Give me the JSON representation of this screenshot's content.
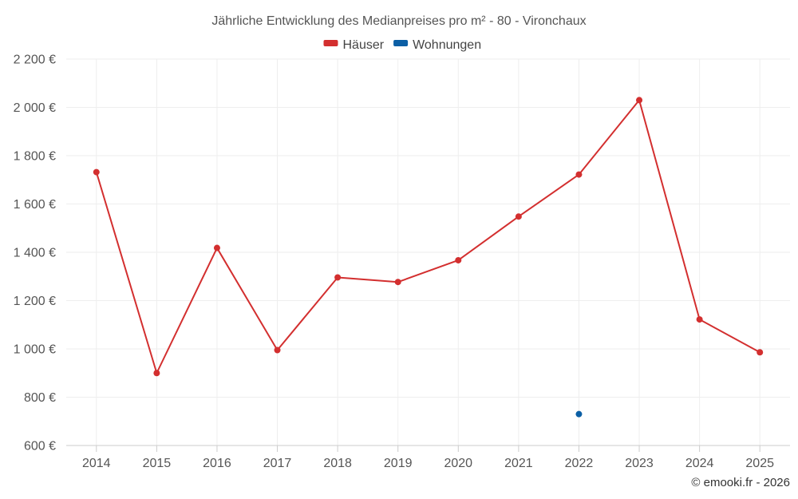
{
  "chart_data": {
    "type": "line",
    "title": "Jährliche Entwicklung des Medianpreises pro m² - 80 - Vironchaux",
    "categories": [
      "2014",
      "2015",
      "2016",
      "2017",
      "2018",
      "2019",
      "2020",
      "2021",
      "2022",
      "2023",
      "2024",
      "2025"
    ],
    "series": [
      {
        "name": "Häuser",
        "color": "#d32f2f",
        "values": [
          1732,
          900,
          1418,
          995,
          1296,
          1277,
          1367,
          1548,
          1722,
          2030,
          1122,
          986
        ]
      },
      {
        "name": "Wohnungen",
        "color": "#0b5fa5",
        "values": [
          null,
          null,
          null,
          null,
          null,
          null,
          null,
          null,
          730,
          null,
          null,
          null
        ]
      }
    ],
    "ylim": [
      600,
      2200
    ],
    "yticks": [
      600,
      800,
      1000,
      1200,
      1400,
      1600,
      1800,
      2000,
      2200
    ],
    "ytick_labels": [
      "600 €",
      "800 €",
      "1 000 €",
      "1 200 €",
      "1 400 €",
      "1 600 €",
      "1 800 €",
      "2 000 €",
      "2 200 €"
    ],
    "xlabel": "",
    "ylabel": "",
    "grid": true,
    "legend": "top-center"
  },
  "credit": "© emooki.fr - 2026",
  "colors": {
    "grid": "#eeeeee",
    "axis": "#cccccc"
  }
}
